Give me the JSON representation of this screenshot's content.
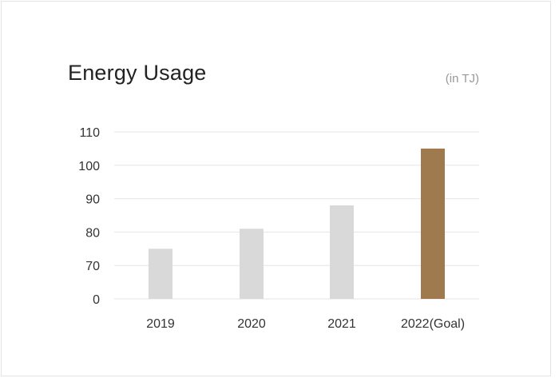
{
  "chart_data": {
    "type": "bar",
    "title": "Energy Usage",
    "unit_label": "(in TJ)",
    "categories": [
      "2019",
      "2020",
      "2021",
      "2022(Goal)"
    ],
    "values": [
      75,
      81,
      88,
      105
    ],
    "y_ticks": [
      "0",
      "70",
      "80",
      "90",
      "100",
      "110"
    ],
    "y_tick_values": [
      60,
      70,
      80,
      90,
      100,
      110
    ],
    "axis_break": "0 shown at baseline (axis broken between 0 and 70)",
    "ylim": [
      60,
      110
    ],
    "grid": true,
    "colors": {
      "bar": "#d9d9d9",
      "highlight_bar": "#9e7a4e",
      "grid": "#e6e6e6"
    },
    "highlight_index": 3
  }
}
